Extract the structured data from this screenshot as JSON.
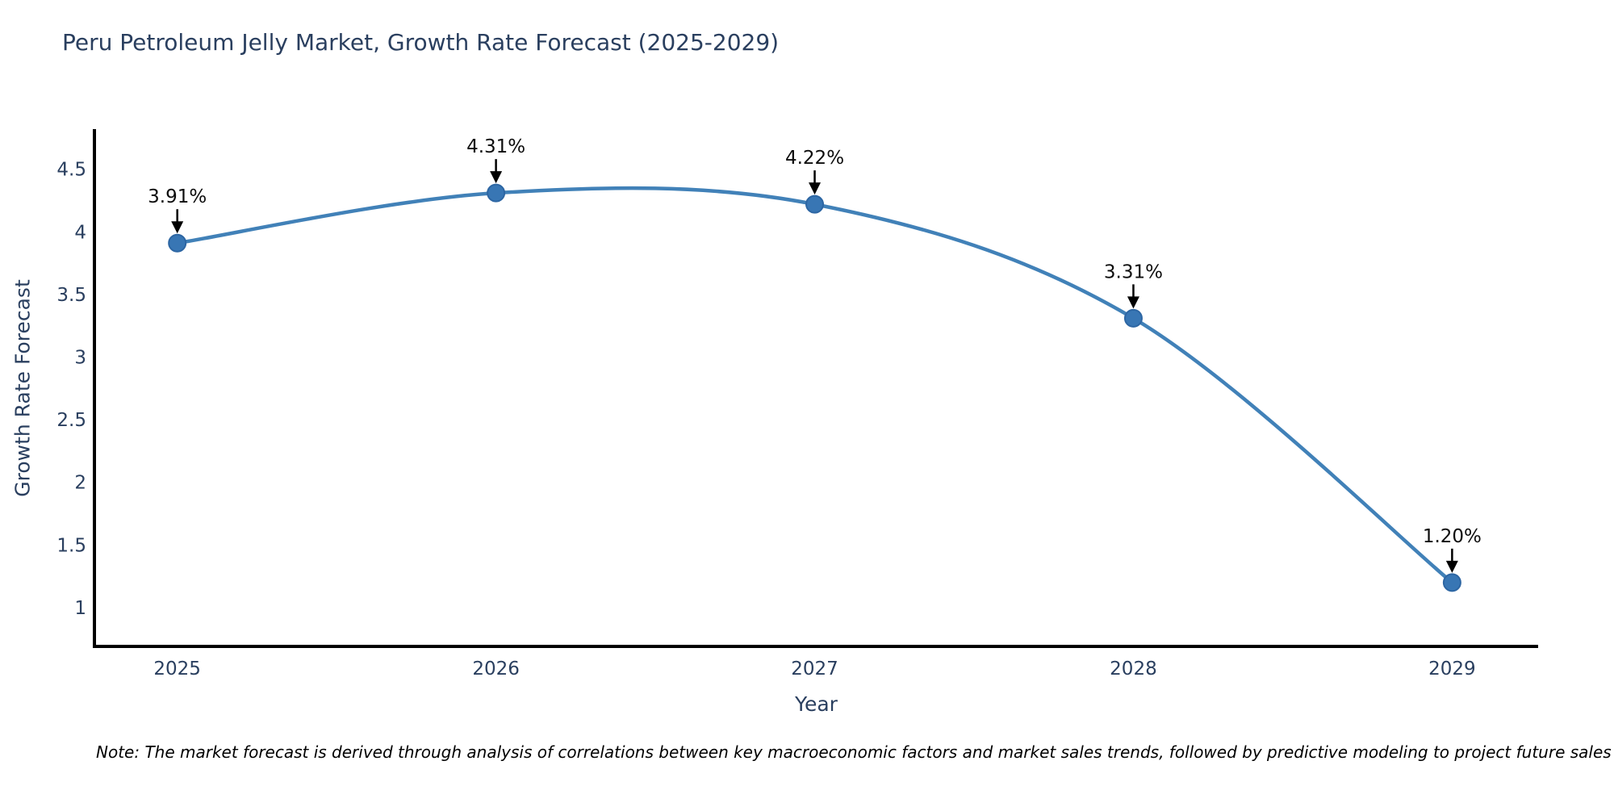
{
  "title": "Peru Petroleum Jelly Market, Growth Rate Forecast (2025-2029)",
  "note": "Note: The market forecast is derived through analysis of correlations between key macroeconomic factors and market sales trends, followed by predictive modeling to project future sales",
  "chart_data": {
    "type": "line",
    "title": "Peru Petroleum Jelly Market, Growth Rate Forecast (2025-2029)",
    "xlabel": "Year",
    "ylabel": "Growth Rate Forecast",
    "x": [
      2025,
      2026,
      2027,
      2028,
      2029
    ],
    "values": [
      3.91,
      4.31,
      4.22,
      3.31,
      1.2
    ],
    "point_labels": [
      "3.91%",
      "4.31%",
      "4.22%",
      "3.31%",
      "1.20%"
    ],
    "yticks": [
      1,
      1.5,
      2,
      2.5,
      3,
      3.5,
      4,
      4.5
    ],
    "xlim": [
      2024.74,
      2029.27
    ],
    "ylim": [
      0.69,
      4.82
    ],
    "line_shape": "spline",
    "grid": false,
    "legend": false,
    "colors": {
      "line": "#4181b8",
      "marker": "#3876b4",
      "marker_edge": "#2d66a3",
      "axis_line": "#000000",
      "tick_text": "#2a3f5f",
      "annotation_text": "#0d0d0d",
      "annotation_arrow": "#000000",
      "background": "#ffffff"
    }
  }
}
